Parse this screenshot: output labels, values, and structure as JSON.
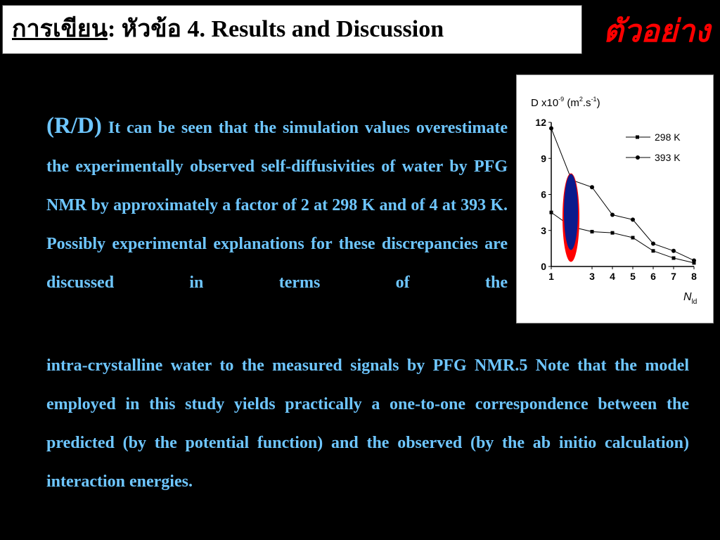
{
  "slide": {
    "title_prefix": "การเขียน",
    "title_rest": ": หัวข้อ 4. Results and Discussion",
    "example_tag": "ตัวอย่าง",
    "para1_lead": "(R/D)",
    "para1_body": "It can be seen that the simulation values overestimate the experimentally observed self-diffusivities of water by PFG NMR by approximately a factor of 2 at 298 K and of 4 at 393 K. Possibly experimental explanations for these discrepancies are discussed in terms of the",
    "para2": "intra-crystalline water to the measured signals by PFG NMR.5 Note that the model employed in this study yields practically a one-to-one correspondence between the predicted (by the potential function) and the observed (by the ab initio calculation) interaction energies."
  },
  "colors": {
    "background": "#000000",
    "text_blue": "#6ec6ff",
    "example_red": "#ff0000",
    "ellipse_blue": "#0b1a8c",
    "ellipse_red": "#ff0000"
  },
  "chart_data": {
    "type": "line",
    "ylabel_base": "D x10",
    "ylabel_exp": "-9",
    "ylabel_unit_open": " (m",
    "ylabel_unit_exp1": "2",
    "ylabel_unit_mid": ".s",
    "ylabel_unit_exp2": "-1",
    "ylabel_unit_close": ")",
    "xlabel": "N",
    "xlabel_sub": "ld",
    "x_ticks": [
      "1",
      "3",
      "4",
      "5",
      "6",
      "7",
      "8"
    ],
    "y_ticks": [
      "0",
      "3",
      "6",
      "9",
      "12"
    ],
    "xlim": [
      1,
      8
    ],
    "ylim": [
      0,
      12
    ],
    "legend_position": "top-right",
    "series": [
      {
        "name": "298 K",
        "marker": "square",
        "x": [
          1,
          2,
          3,
          4,
          5,
          6,
          7,
          8
        ],
        "values": [
          4.5,
          3.3,
          2.9,
          2.8,
          2.4,
          1.3,
          0.7,
          0.3
        ]
      },
      {
        "name": "393 K",
        "marker": "circle",
        "x": [
          1,
          2,
          3,
          4,
          5,
          6,
          7,
          8
        ],
        "values": [
          11.5,
          7.2,
          6.6,
          4.3,
          3.9,
          1.9,
          1.3,
          0.5
        ]
      }
    ],
    "annotation": "blue ellipse with red outline around N=2"
  }
}
